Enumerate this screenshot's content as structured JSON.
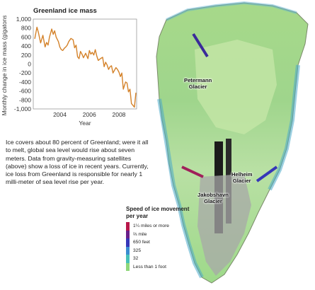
{
  "chart_data": {
    "type": "line",
    "title": "Greenland ice mass",
    "xlabel": "Year",
    "ylabel": "Monthly change in ice mass (gigatons)",
    "xlim": [
      2002.2,
      2009.2
    ],
    "ylim": [
      -1000,
      1000
    ],
    "x_ticks": [
      2004,
      2006,
      2008
    ],
    "y_ticks": [
      1000,
      800,
      600,
      400,
      200,
      0,
      -200,
      -400,
      -600,
      -800,
      -1000
    ],
    "y_tick_labels": [
      "1,000",
      "800",
      "600",
      "400",
      "200",
      "0",
      "-200",
      "-400",
      "-600",
      "-800",
      "-1,000"
    ],
    "grid": false,
    "series": [
      {
        "color": "#d4822a",
        "x": [
          2002.3,
          2002.45,
          2002.55,
          2002.7,
          2002.85,
          2003.0,
          2003.1,
          2003.2,
          2003.3,
          2003.45,
          2003.55,
          2003.65,
          2003.75,
          2003.9,
          2004.0,
          2004.1,
          2004.2,
          2004.3,
          2004.4,
          2004.5,
          2004.6,
          2004.75,
          2004.9,
          2005.0,
          2005.1,
          2005.2,
          2005.3,
          2005.4,
          2005.5,
          2005.6,
          2005.75,
          2005.9,
          2006.0,
          2006.1,
          2006.2,
          2006.3,
          2006.4,
          2006.5,
          2006.6,
          2006.75,
          2006.9,
          2007.0,
          2007.1,
          2007.2,
          2007.3,
          2007.4,
          2007.5,
          2007.6,
          2007.7,
          2007.8,
          2007.9,
          2008.0,
          2008.1,
          2008.2,
          2008.3,
          2008.45,
          2008.55,
          2008.65,
          2008.75,
          2008.85,
          2008.95,
          2009.05,
          2009.15
        ],
        "values": [
          560,
          820,
          700,
          470,
          640,
          380,
          480,
          420,
          600,
          780,
          660,
          740,
          600,
          500,
          380,
          320,
          300,
          350,
          380,
          420,
          500,
          570,
          540,
          360,
          420,
          160,
          120,
          280,
          220,
          140,
          240,
          120,
          300,
          220,
          260,
          200,
          320,
          180,
          80,
          120,
          150,
          -60,
          40,
          -20,
          -120,
          -60,
          -40,
          -200,
          -140,
          -80,
          -120,
          -180,
          -280,
          -200,
          -560,
          -400,
          -420,
          -620,
          -560,
          -880,
          -920,
          -960,
          -640
        ]
      }
    ]
  },
  "text": {
    "paragraph": "Ice covers about 80 percent of Greenland; were it all to melt, global sea level would rise about seven meters. Data from gravity-measuring satellites (above) show a loss of ice in recent years. Currently, ice loss from Greenland is responsible for nearly 1 milli-meter of sea level rise per year."
  },
  "map": {
    "glaciers": [
      {
        "name": "Petermann\nGlacier"
      },
      {
        "name": "Helheim\nGlacier"
      },
      {
        "name": "Jakobshavn\nGlacier"
      }
    ]
  },
  "legend": {
    "title": "Speed of ice movement per year",
    "items": [
      {
        "label": "1¼ miles or more",
        "color": "#b8174a"
      },
      {
        "label": "⅔ mile",
        "color": "#6a1f8a"
      },
      {
        "label": "650 feet",
        "color": "#3636b8"
      },
      {
        "label": "325",
        "color": "#3a8cd0"
      },
      {
        "label": "32",
        "color": "#46c0b8"
      },
      {
        "label": "Less than 1 foot",
        "color": "#8fd77a"
      }
    ]
  }
}
